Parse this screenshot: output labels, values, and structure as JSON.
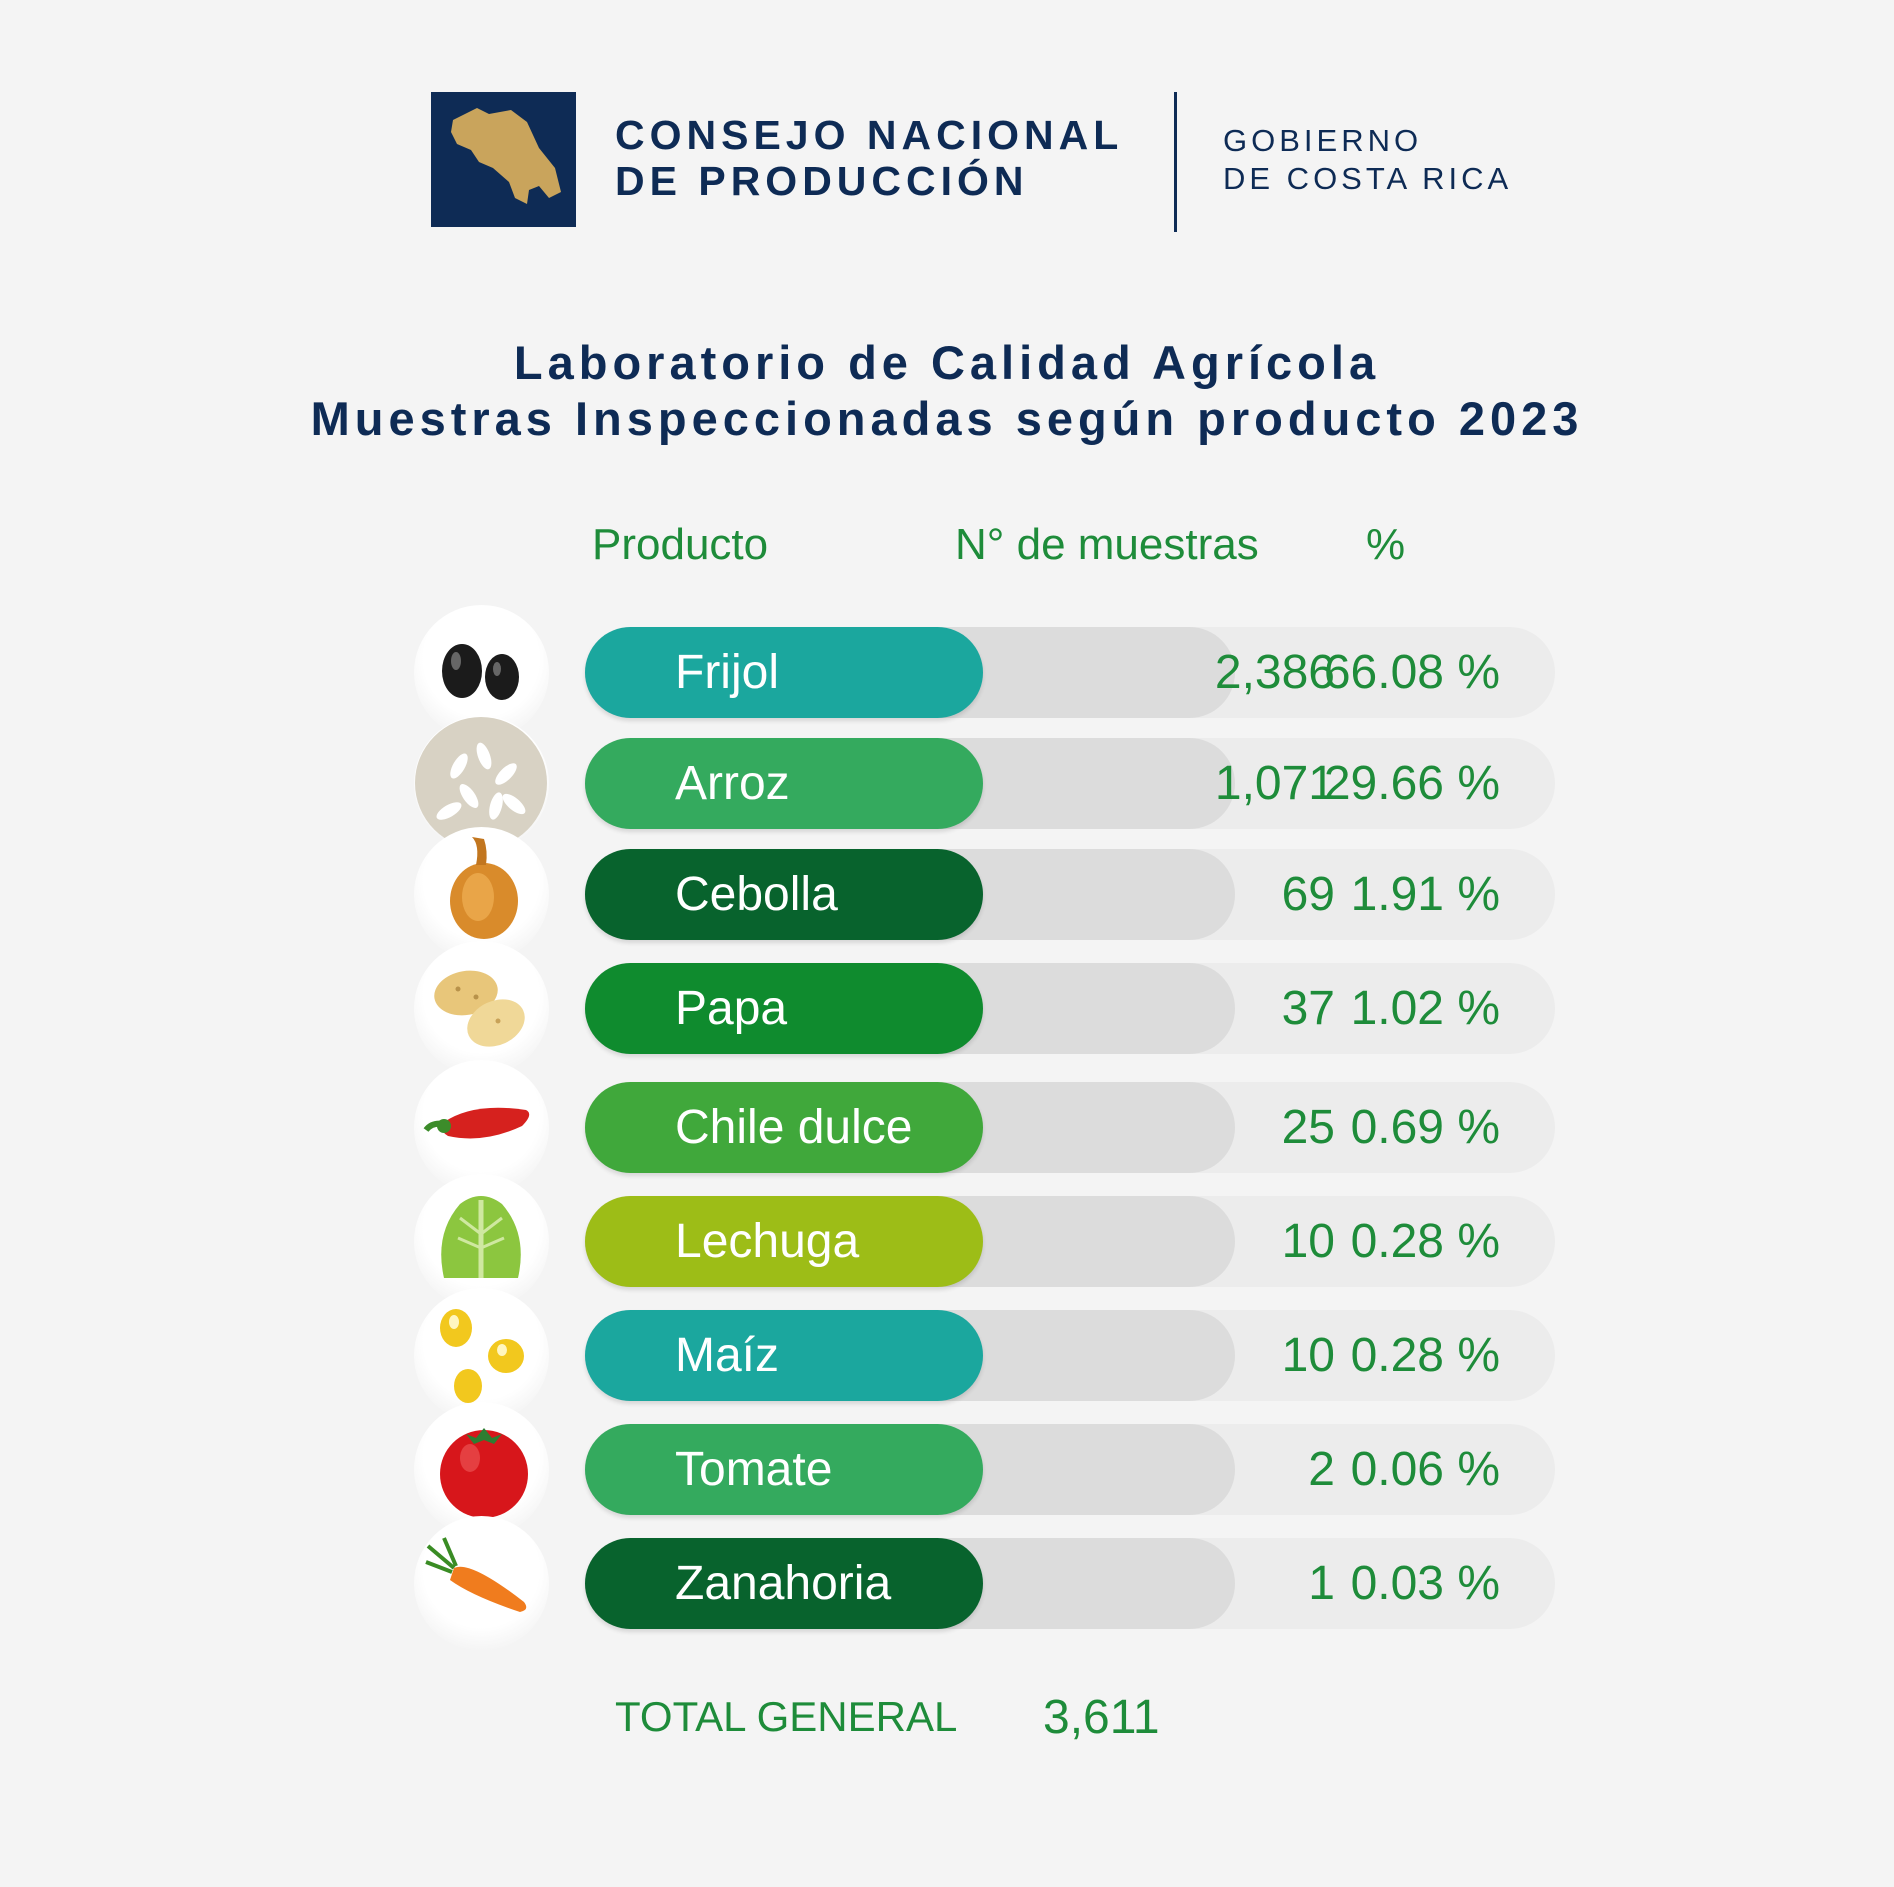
{
  "header": {
    "org_line1": "CONSEJO NACIONAL",
    "org_line2": "DE PRODUCCIÓN",
    "gov_line1": "GOBIERNO",
    "gov_line2": "DE COSTA RICA"
  },
  "titles": {
    "line1": "Laboratorio de Calidad Agrícola",
    "line2": "Muestras Inspeccionadas según producto 2023"
  },
  "colors": {
    "navy": "#0e2b55",
    "text_green": "#1e8c3a",
    "gold": "#c9a45c"
  },
  "chart_data": {
    "type": "table",
    "columns": [
      "Producto",
      "N° de muestras",
      "%"
    ],
    "rows": [
      {
        "producto": "Frijol",
        "muestras": "2,386",
        "pct": "66.08 %",
        "color": "#1ba79e",
        "icon": "beans-icon"
      },
      {
        "producto": "Arroz",
        "muestras": "1,071",
        "pct": "29.66 %",
        "color": "#34aa5e",
        "icon": "rice-icon"
      },
      {
        "producto": "Cebolla",
        "muestras": "69",
        "pct": "1.91 %",
        "color": "#08632d",
        "icon": "onion-icon"
      },
      {
        "producto": "Papa",
        "muestras": "37",
        "pct": "1.02 %",
        "color": "#0f8b2e",
        "icon": "potato-icon"
      },
      {
        "producto": "Chile dulce",
        "muestras": "25",
        "pct": "0.69 %",
        "color": "#40a83b",
        "icon": "pepper-icon"
      },
      {
        "producto": "Lechuga",
        "muestras": "10",
        "pct": "0.28 %",
        "color": "#9dbd17",
        "icon": "lettuce-icon"
      },
      {
        "producto": "Maíz",
        "muestras": "10",
        "pct": "0.28 %",
        "color": "#1ba79e",
        "icon": "corn-icon"
      },
      {
        "producto": "Tomate",
        "muestras": "2",
        "pct": "0.06 %",
        "color": "#34aa5e",
        "icon": "tomato-icon"
      },
      {
        "producto": "Zanahoria",
        "muestras": "1",
        "pct": "0.03 %",
        "color": "#08632d",
        "icon": "carrot-icon"
      }
    ],
    "total_label": "TOTAL GENERAL",
    "total_value": "3,611"
  }
}
